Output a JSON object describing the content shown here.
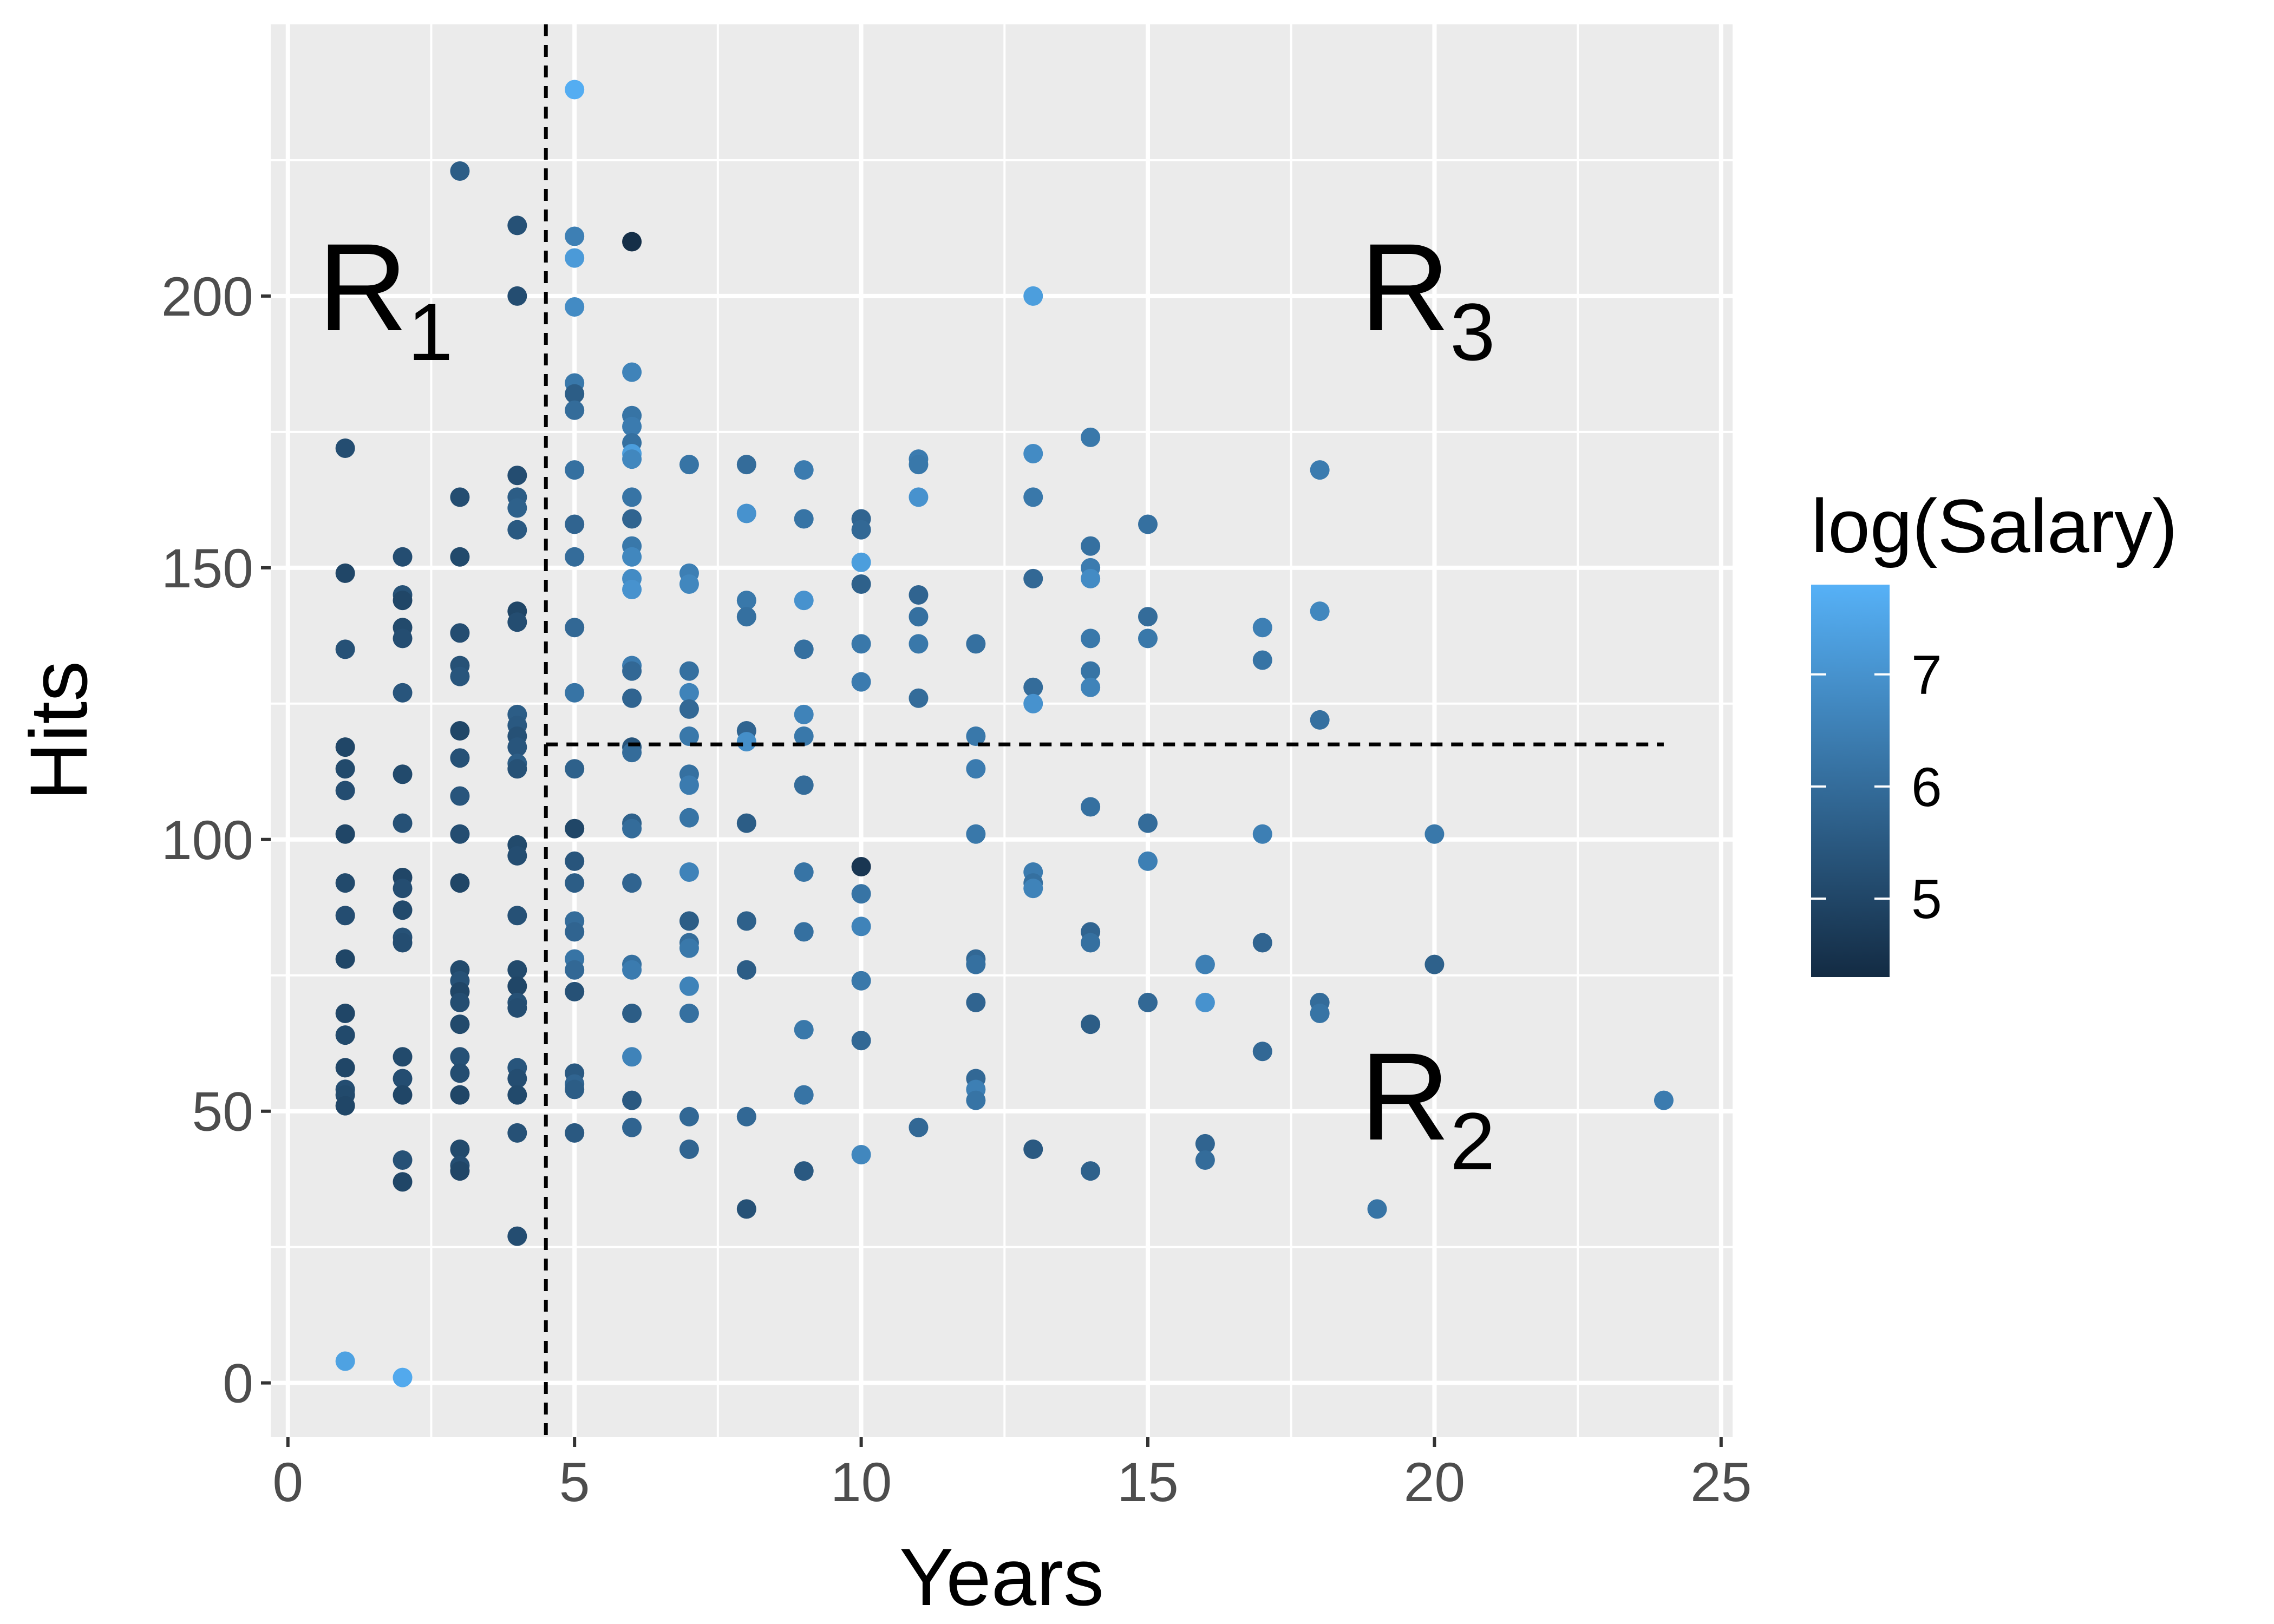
{
  "chart_data": {
    "type": "scatter",
    "title": "",
    "xlabel": "Years",
    "ylabel": "Hits",
    "xlim": [
      -0.3,
      25.2
    ],
    "ylim": [
      -10,
      250
    ],
    "x_ticks": [
      0,
      5,
      10,
      15,
      20,
      25
    ],
    "y_ticks": [
      0,
      50,
      100,
      150,
      200
    ],
    "grid": true,
    "legend": {
      "title": "log(Salary)",
      "placement": "right",
      "ticks": [
        5,
        6,
        7
      ],
      "range": [
        4.3,
        7.8
      ]
    },
    "colors": {
      "panel_background": "#ebebeb",
      "grid": "#ffffff",
      "low": "#132b43",
      "high": "#56b1f7",
      "split_line": "#000000"
    },
    "splits": [
      {
        "orientation": "vertical",
        "x": 4.5,
        "y_from": -10,
        "y_to": 250
      },
      {
        "orientation": "horizontal",
        "y": 117.5,
        "x_from": 4.5,
        "x_to": 24
      }
    ],
    "region_labels": [
      {
        "main": "R",
        "sub": "1",
        "x": 2,
        "y": 196
      },
      {
        "main": "R",
        "sub": "3",
        "x": 20,
        "y": 196
      },
      {
        "main": "R",
        "sub": "2",
        "x": 20,
        "y": 46
      }
    ],
    "points": [
      [
        1,
        172,
        5.2
      ],
      [
        1,
        149,
        5.0
      ],
      [
        1,
        135,
        5.3
      ],
      [
        1,
        117,
        5.0
      ],
      [
        1,
        113,
        5.1
      ],
      [
        1,
        109,
        5.2
      ],
      [
        1,
        101,
        5.0
      ],
      [
        1,
        92,
        5.1
      ],
      [
        1,
        86,
        5.2
      ],
      [
        1,
        78,
        5.0
      ],
      [
        1,
        68,
        5.0
      ],
      [
        1,
        64,
        5.1
      ],
      [
        1,
        58,
        5.0
      ],
      [
        1,
        54,
        5.2
      ],
      [
        1,
        53,
        5.1
      ],
      [
        1,
        51,
        5.0
      ],
      [
        1,
        4,
        7.4
      ],
      [
        2,
        152,
        5.2
      ],
      [
        2,
        145,
        5.3
      ],
      [
        2,
        144,
        5.0
      ],
      [
        2,
        139,
        5.1
      ],
      [
        2,
        137,
        5.2
      ],
      [
        2,
        127,
        5.4
      ],
      [
        2,
        112,
        5.1
      ],
      [
        2,
        103,
        5.3
      ],
      [
        2,
        93,
        5.0
      ],
      [
        2,
        91,
        5.2
      ],
      [
        2,
        87,
        5.1
      ],
      [
        2,
        82,
        5.3
      ],
      [
        2,
        81,
        5.2
      ],
      [
        2,
        60,
        5.1
      ],
      [
        2,
        56,
        5.2
      ],
      [
        2,
        53,
        5.0
      ],
      [
        2,
        41,
        5.3
      ],
      [
        2,
        37,
        5.0
      ],
      [
        2,
        1,
        7.6
      ],
      [
        3,
        223,
        5.6
      ],
      [
        3,
        163,
        5.2
      ],
      [
        3,
        152,
        5.1
      ],
      [
        3,
        138,
        5.2
      ],
      [
        3,
        132,
        5.3
      ],
      [
        3,
        130,
        5.4
      ],
      [
        3,
        120,
        5.0
      ],
      [
        3,
        115,
        5.3
      ],
      [
        3,
        108,
        5.4
      ],
      [
        3,
        101,
        5.2
      ],
      [
        3,
        92,
        5.0
      ],
      [
        3,
        76,
        5.1
      ],
      [
        3,
        74,
        5.3
      ],
      [
        3,
        72,
        5.0
      ],
      [
        3,
        70,
        5.2
      ],
      [
        3,
        66,
        5.1
      ],
      [
        3,
        60,
        5.3
      ],
      [
        3,
        57,
        5.2
      ],
      [
        3,
        53,
        5.0
      ],
      [
        3,
        43,
        5.1
      ],
      [
        3,
        40,
        5.2
      ],
      [
        3,
        39,
        5.0
      ],
      [
        4,
        213,
        5.3
      ],
      [
        4,
        200,
        5.2
      ],
      [
        4,
        167,
        5.2
      ],
      [
        4,
        163,
        5.6
      ],
      [
        4,
        161,
        5.7
      ],
      [
        4,
        157,
        5.5
      ],
      [
        4,
        142,
        5.0
      ],
      [
        4,
        140,
        5.2
      ],
      [
        4,
        123,
        5.6
      ],
      [
        4,
        121,
        5.5
      ],
      [
        4,
        119,
        5.3
      ],
      [
        4,
        117,
        5.4
      ],
      [
        4,
        114,
        5.6
      ],
      [
        4,
        113,
        5.3
      ],
      [
        4,
        99,
        5.1
      ],
      [
        4,
        97,
        5.2
      ],
      [
        4,
        86,
        5.3
      ],
      [
        4,
        76,
        5.1
      ],
      [
        4,
        73,
        5.0
      ],
      [
        4,
        70,
        5.3
      ],
      [
        4,
        69,
        5.2
      ],
      [
        4,
        58,
        5.4
      ],
      [
        4,
        56,
        5.2
      ],
      [
        4,
        53,
        5.1
      ],
      [
        4,
        46,
        5.3
      ],
      [
        4,
        27,
        5.2
      ],
      [
        5,
        238,
        7.7
      ],
      [
        5,
        211,
        6.5
      ],
      [
        5,
        207,
        7.2
      ],
      [
        5,
        198,
        6.8
      ],
      [
        5,
        184,
        6.3
      ],
      [
        5,
        182,
        5.6
      ],
      [
        5,
        179,
        6.0
      ],
      [
        5,
        168,
        6.1
      ],
      [
        5,
        158,
        5.8
      ],
      [
        5,
        152,
        6.0
      ],
      [
        5,
        139,
        5.9
      ],
      [
        5,
        127,
        6.2
      ],
      [
        5,
        113,
        5.7
      ],
      [
        5,
        102,
        5.0
      ],
      [
        5,
        96,
        5.4
      ],
      [
        5,
        92,
        5.6
      ],
      [
        5,
        85,
        6.0
      ],
      [
        5,
        83,
        5.8
      ],
      [
        5,
        78,
        6.2
      ],
      [
        5,
        76,
        5.9
      ],
      [
        5,
        72,
        5.3
      ],
      [
        5,
        57,
        5.5
      ],
      [
        5,
        55,
        5.8
      ],
      [
        5,
        54,
        5.6
      ],
      [
        5,
        46,
        5.5
      ],
      [
        6,
        210,
        4.4
      ],
      [
        6,
        186,
        6.6
      ],
      [
        6,
        178,
        6.2
      ],
      [
        6,
        176,
        6.4
      ],
      [
        6,
        173,
        6.1
      ],
      [
        6,
        171,
        7.3
      ],
      [
        6,
        170,
        6.7
      ],
      [
        6,
        163,
        6.2
      ],
      [
        6,
        159,
        5.8
      ],
      [
        6,
        154,
        6.3
      ],
      [
        6,
        152,
        6.7
      ],
      [
        6,
        148,
        6.8
      ],
      [
        6,
        146,
        7.0
      ],
      [
        6,
        132,
        6.4
      ],
      [
        6,
        131,
        5.9
      ],
      [
        6,
        126,
        5.8
      ],
      [
        6,
        117,
        5.4
      ],
      [
        6,
        116,
        6.0
      ],
      [
        6,
        103,
        5.7
      ],
      [
        6,
        102,
        6.0
      ],
      [
        6,
        92,
        5.8
      ],
      [
        6,
        77,
        6.1
      ],
      [
        6,
        76,
        6.4
      ],
      [
        6,
        68,
        5.6
      ],
      [
        6,
        60,
        6.6
      ],
      [
        6,
        52,
        5.5
      ],
      [
        6,
        47,
        5.8
      ],
      [
        7,
        169,
        6.2
      ],
      [
        7,
        149,
        6.5
      ],
      [
        7,
        147,
        6.7
      ],
      [
        7,
        131,
        6.1
      ],
      [
        7,
        127,
        6.6
      ],
      [
        7,
        124,
        5.9
      ],
      [
        7,
        119,
        6.3
      ],
      [
        7,
        112,
        6.1
      ],
      [
        7,
        110,
        6.4
      ],
      [
        7,
        104,
        6.2
      ],
      [
        7,
        94,
        6.6
      ],
      [
        7,
        85,
        5.6
      ],
      [
        7,
        81,
        6.0
      ],
      [
        7,
        80,
        6.3
      ],
      [
        7,
        73,
        6.6
      ],
      [
        7,
        68,
        6.1
      ],
      [
        7,
        49,
        5.9
      ],
      [
        7,
        43,
        5.8
      ],
      [
        8,
        169,
        6.0
      ],
      [
        8,
        160,
        7.0
      ],
      [
        8,
        144,
        6.3
      ],
      [
        8,
        141,
        6.1
      ],
      [
        8,
        120,
        5.8
      ],
      [
        8,
        118,
        6.9
      ],
      [
        8,
        103,
        5.6
      ],
      [
        8,
        85,
        5.7
      ],
      [
        8,
        76,
        5.6
      ],
      [
        8,
        49,
        5.9
      ],
      [
        8,
        32,
        5.3
      ],
      [
        9,
        168,
        6.4
      ],
      [
        9,
        159,
        6.2
      ],
      [
        9,
        144,
        7.0
      ],
      [
        9,
        135,
        6.1
      ],
      [
        9,
        123,
        6.6
      ],
      [
        9,
        119,
        6.3
      ],
      [
        9,
        110,
        6.0
      ],
      [
        9,
        94,
        6.2
      ],
      [
        9,
        83,
        6.1
      ],
      [
        9,
        65,
        6.3
      ],
      [
        9,
        53,
        6.2
      ],
      [
        9,
        39,
        5.5
      ],
      [
        10,
        159,
        5.8
      ],
      [
        10,
        157,
        5.9
      ],
      [
        10,
        151,
        7.3
      ],
      [
        10,
        147,
        5.7
      ],
      [
        10,
        136,
        6.3
      ],
      [
        10,
        129,
        6.4
      ],
      [
        10,
        95,
        4.6
      ],
      [
        10,
        90,
        6.2
      ],
      [
        10,
        84,
        6.6
      ],
      [
        10,
        74,
        6.3
      ],
      [
        10,
        63,
        5.9
      ],
      [
        10,
        42,
        6.7
      ],
      [
        11,
        170,
        6.4
      ],
      [
        11,
        169,
        6.3
      ],
      [
        11,
        163,
        7.0
      ],
      [
        11,
        145,
        5.8
      ],
      [
        11,
        141,
        6.1
      ],
      [
        11,
        136,
        6.3
      ],
      [
        11,
        126,
        6.0
      ],
      [
        11,
        47,
        5.9
      ],
      [
        12,
        136,
        6.1
      ],
      [
        12,
        119,
        6.3
      ],
      [
        12,
        113,
        6.4
      ],
      [
        12,
        101,
        6.3
      ],
      [
        12,
        78,
        5.9
      ],
      [
        12,
        77,
        6.1
      ],
      [
        12,
        70,
        5.8
      ],
      [
        12,
        56,
        5.9
      ],
      [
        12,
        54,
        6.5
      ],
      [
        12,
        52,
        6.2
      ],
      [
        13,
        200,
        7.3
      ],
      [
        13,
        171,
        6.8
      ],
      [
        13,
        163,
        6.3
      ],
      [
        13,
        148,
        5.9
      ],
      [
        13,
        128,
        6.0
      ],
      [
        13,
        125,
        7.0
      ],
      [
        13,
        94,
        6.4
      ],
      [
        13,
        92,
        6.1
      ],
      [
        13,
        91,
        6.6
      ],
      [
        13,
        43,
        5.5
      ],
      [
        14,
        174,
        6.3
      ],
      [
        14,
        154,
        6.1
      ],
      [
        14,
        150,
        6.4
      ],
      [
        14,
        148,
        6.8
      ],
      [
        14,
        137,
        6.3
      ],
      [
        14,
        131,
        6.2
      ],
      [
        14,
        128,
        6.6
      ],
      [
        14,
        106,
        6.1
      ],
      [
        14,
        83,
        5.8
      ],
      [
        14,
        81,
        6.1
      ],
      [
        14,
        66,
        5.6
      ],
      [
        14,
        39,
        5.7
      ],
      [
        15,
        158,
        6.1
      ],
      [
        15,
        141,
        6.0
      ],
      [
        15,
        137,
        6.3
      ],
      [
        15,
        103,
        6.0
      ],
      [
        15,
        96,
        6.5
      ],
      [
        15,
        70,
        5.9
      ],
      [
        16,
        77,
        6.5
      ],
      [
        16,
        70,
        7.0
      ],
      [
        16,
        44,
        5.8
      ],
      [
        16,
        41,
        6.0
      ],
      [
        17,
        139,
        6.5
      ],
      [
        17,
        133,
        6.2
      ],
      [
        17,
        101,
        6.5
      ],
      [
        17,
        81,
        5.8
      ],
      [
        17,
        61,
        5.9
      ],
      [
        18,
        168,
        6.4
      ],
      [
        18,
        142,
        6.7
      ],
      [
        18,
        122,
        6.1
      ],
      [
        18,
        70,
        6.0
      ],
      [
        18,
        68,
        6.2
      ],
      [
        19,
        32,
        6.2
      ],
      [
        20,
        101,
        6.3
      ],
      [
        20,
        77,
        5.7
      ],
      [
        24,
        52,
        6.4
      ]
    ]
  }
}
